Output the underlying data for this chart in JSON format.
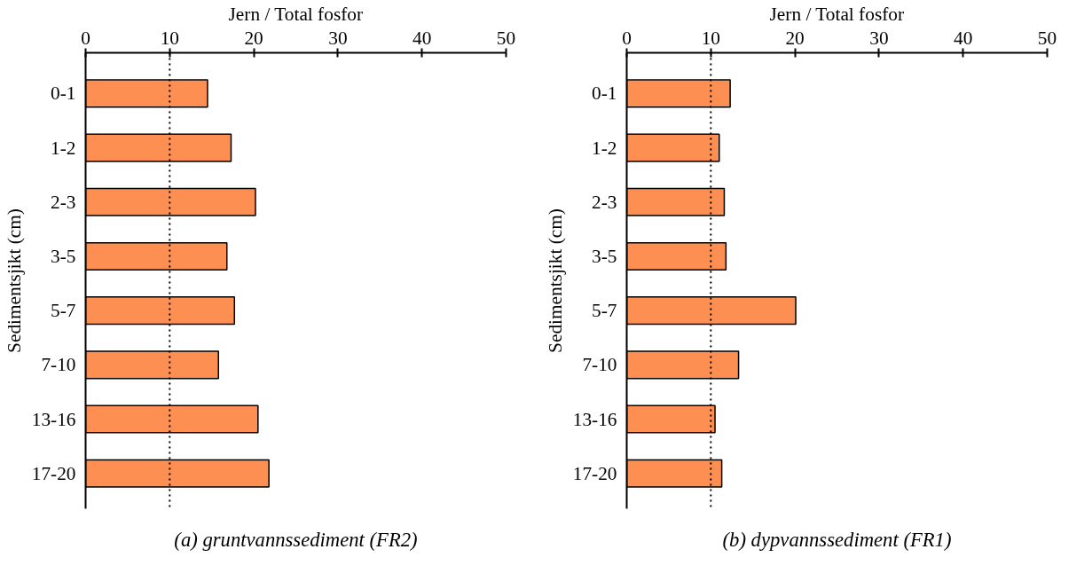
{
  "chart_data": [
    {
      "type": "bar",
      "orientation": "horizontal",
      "title": "(a) gruntvannssediment (FR2)",
      "xlabel": "Jern / Total fosfor",
      "ylabel": "Sedimentsjikt (cm)",
      "categories": [
        "0-1",
        "1-2",
        "2-3",
        "3-5",
        "5-7",
        "7-10",
        "13-16",
        "17-20"
      ],
      "values": [
        14.5,
        17.3,
        20.2,
        16.8,
        17.7,
        15.8,
        20.5,
        21.8
      ],
      "color": "#fe8f52",
      "xlim": [
        0,
        50
      ],
      "xticks": [
        0,
        10,
        20,
        30,
        40,
        50
      ],
      "grid": false,
      "ref_lines": [
        {
          "axis": "x",
          "value": 10,
          "color": "#000000",
          "line_style": "dotted"
        }
      ]
    },
    {
      "type": "bar",
      "orientation": "horizontal",
      "title": "(b) dypvannssediment (FR1)",
      "xlabel": "Jern / Total fosfor",
      "ylabel": "Sedimentsjikt (cm)",
      "categories": [
        "0-1",
        "1-2",
        "2-3",
        "3-5",
        "5-7",
        "7-10",
        "13-16",
        "17-20"
      ],
      "values": [
        12.3,
        11.0,
        11.6,
        11.8,
        20.1,
        13.3,
        10.5,
        11.3
      ],
      "color": "#fe8f52",
      "xlim": [
        0,
        50
      ],
      "xticks": [
        0,
        10,
        20,
        30,
        40,
        50
      ],
      "grid": false,
      "ref_lines": [
        {
          "axis": "x",
          "value": 10,
          "color": "#000000",
          "line_style": "dotted"
        }
      ]
    }
  ]
}
